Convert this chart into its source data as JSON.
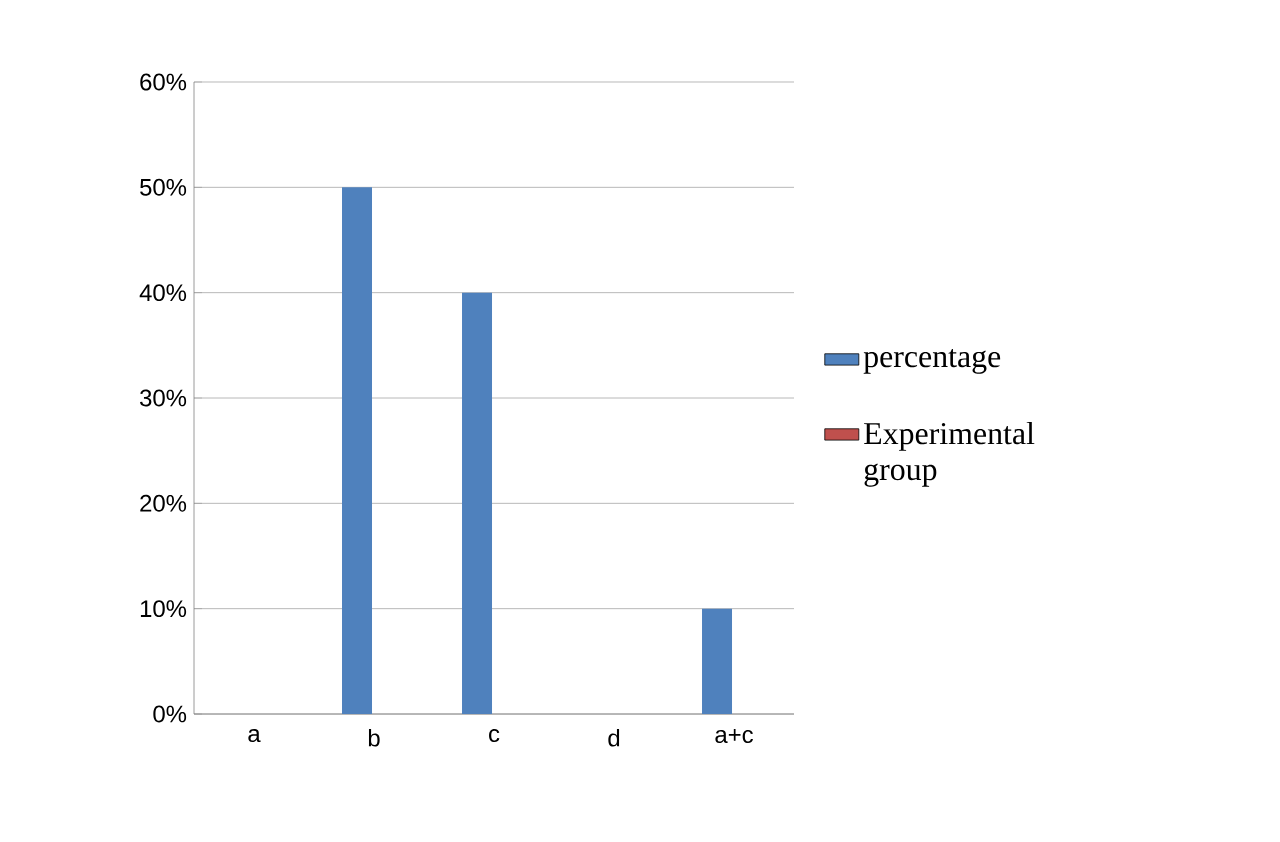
{
  "chart_data": {
    "type": "bar",
    "categories": [
      "a",
      "b",
      "c",
      "d",
      "a+c"
    ],
    "series": [
      {
        "name": "percentage",
        "color": "#4f81bd",
        "values": [
          0,
          50,
          40,
          0,
          10
        ]
      },
      {
        "name": "Experimental group",
        "color": "#c0504d",
        "values": [
          0,
          0,
          0,
          0,
          0
        ]
      }
    ],
    "ylim": [
      0,
      60
    ],
    "yticks": [
      {
        "value": 0,
        "label": "0%"
      },
      {
        "value": 10,
        "label": "10%"
      },
      {
        "value": 20,
        "label": "20%"
      },
      {
        "value": 30,
        "label": "30%"
      },
      {
        "value": 40,
        "label": "40%"
      },
      {
        "value": 50,
        "label": "50%"
      },
      {
        "value": 60,
        "label": "60%"
      }
    ],
    "grid": "y",
    "legend": "right"
  }
}
